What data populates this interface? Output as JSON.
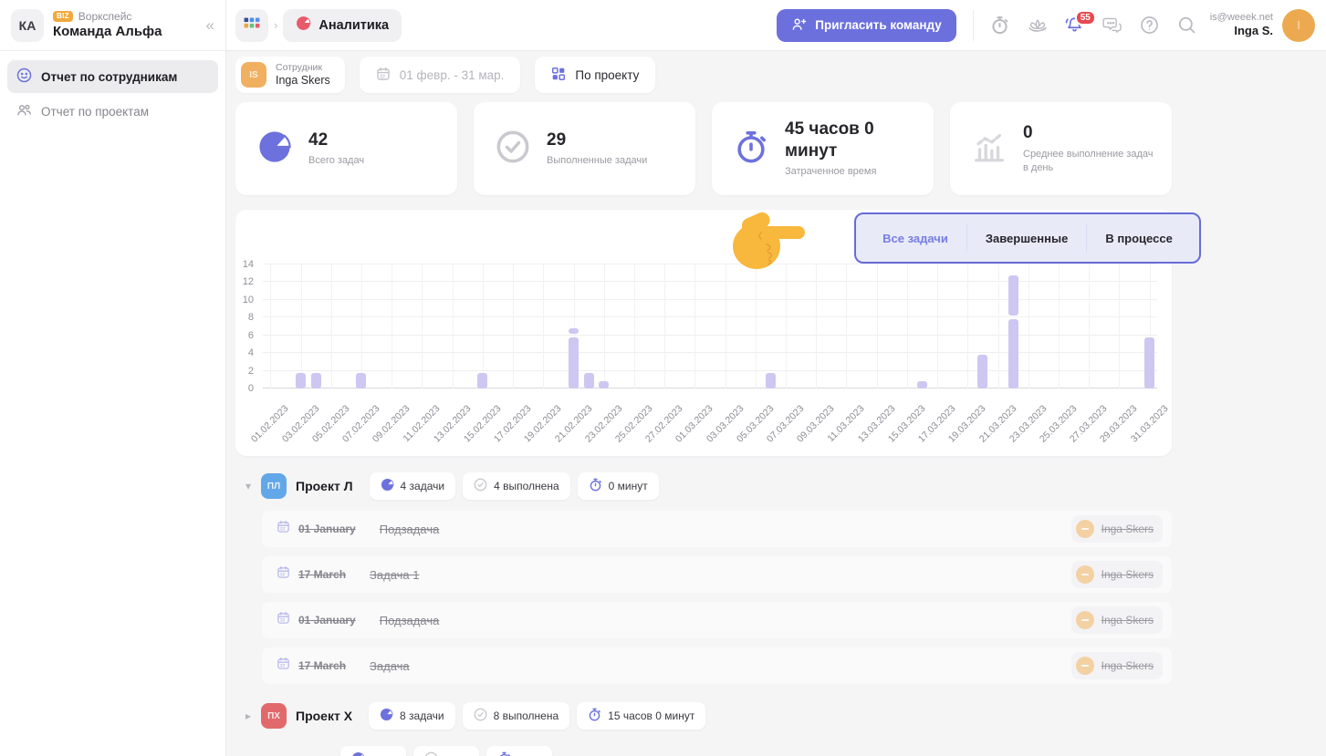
{
  "sidebar": {
    "workspace_initials": "КА",
    "plan_badge": "BIZ",
    "workspace_label": "Воркспейс",
    "workspace_name": "Команда Альфа",
    "items": [
      {
        "label": "Отчет по сотрудникам",
        "icon": "smiley-icon",
        "active": true
      },
      {
        "label": "Отчет по проектам",
        "icon": "people-icon",
        "active": false
      }
    ]
  },
  "header": {
    "current_tab": "Аналитика",
    "invite_button": "Пригласить команду",
    "notification_count": "55",
    "user_email": "is@weeek.net",
    "user_name": "Inga S.",
    "avatar_initial": "I"
  },
  "filters": {
    "employee": {
      "label": "Сотрудник",
      "value": "Inga Skers",
      "avatar_initials": "IS",
      "avatar_color": "#f0b060"
    },
    "date_range": "01 февр. - 31 мар.",
    "grouping": "По проекту"
  },
  "stats": [
    {
      "icon": "pie-chart-icon",
      "accent": "#6d71dd",
      "value": "42",
      "label": "Всего задач"
    },
    {
      "icon": "check-circle-icon",
      "accent": "#c9c9cf",
      "value": "29",
      "label": "Выполненные задачи"
    },
    {
      "icon": "stopwatch-icon",
      "accent": "#6d71dd",
      "value": "45 часов 0 минут",
      "label": "Затраченное время"
    },
    {
      "icon": "bar-chart-icon",
      "accent": "#d7d7dc",
      "value": "0",
      "label": "Среднее выполнение задач в день"
    }
  ],
  "chart_tabs": {
    "tabs": [
      "Все задачи",
      "Завершенные",
      "В процессе"
    ],
    "active": "Все задачи",
    "box_border": "#666cd6",
    "box_bg": "#e9eaf8"
  },
  "chart_data": {
    "type": "bar",
    "title": "",
    "xlabel": "",
    "ylabel": "",
    "ylim": [
      0,
      14
    ],
    "yticks": [
      0,
      2,
      4,
      6,
      8,
      10,
      12,
      14
    ],
    "x_range": [
      "01.02.2023",
      "31.03.2023"
    ],
    "bar_color": "#cdc7f1",
    "grid": true,
    "tick_labels": [
      "01.02.2023",
      "03.02.2023",
      "05.02.2023",
      "07.02.2023",
      "09.02.2023",
      "11.02.2023",
      "13.02.2023",
      "15.02.2023",
      "17.02.2023",
      "19.02.2023",
      "21.02.2023",
      "23.02.2023",
      "25.02.2023",
      "27.02.2023",
      "01.03.2023",
      "03.03.2023",
      "05.03.2023",
      "07.03.2023",
      "09.03.2023",
      "11.03.2023",
      "13.03.2023",
      "15.03.2023",
      "17.03.2023",
      "19.03.2023",
      "21.03.2023",
      "23.03.2023",
      "25.03.2023",
      "27.03.2023",
      "29.03.2023",
      "31.03.2023"
    ],
    "bars": [
      {
        "date": "03.02.2023",
        "segments": [
          2
        ]
      },
      {
        "date": "04.02.2023",
        "segments": [
          2
        ]
      },
      {
        "date": "07.02.2023",
        "segments": [
          2
        ]
      },
      {
        "date": "15.02.2023",
        "segments": [
          2
        ]
      },
      {
        "date": "21.02.2023",
        "segments": [
          6,
          1
        ]
      },
      {
        "date": "22.02.2023",
        "segments": [
          2
        ]
      },
      {
        "date": "23.02.2023",
        "segments": [
          1
        ]
      },
      {
        "date": "06.03.2023",
        "segments": [
          2
        ]
      },
      {
        "date": "16.03.2023",
        "segments": [
          1
        ]
      },
      {
        "date": "20.03.2023",
        "segments": [
          4
        ]
      },
      {
        "date": "22.03.2023",
        "segments": [
          8,
          5
        ]
      },
      {
        "date": "31.03.2023",
        "segments": [
          6
        ]
      }
    ]
  },
  "projects": [
    {
      "initials": "ПЛ",
      "color": "#62a8e9",
      "name": "Проект Л",
      "expanded": true,
      "chips": [
        {
          "icon": "pie-chart-icon",
          "label": "4 задачи"
        },
        {
          "icon": "check-circle-icon",
          "label": "4 выполнена"
        },
        {
          "icon": "stopwatch-icon",
          "label": "0 минут"
        }
      ],
      "tasks": [
        {
          "date": "01 January",
          "title": "Подзадача",
          "assignee": "Inga Skers",
          "completed": true
        },
        {
          "date": "17 March",
          "title": "Задача 1",
          "assignee": "Inga Skers",
          "completed": true
        },
        {
          "date": "01 January",
          "title": "Подзадача",
          "assignee": "Inga Skers",
          "completed": true
        },
        {
          "date": "17 March",
          "title": "Задача",
          "assignee": "Inga Skers",
          "completed": true
        }
      ]
    },
    {
      "initials": "ПХ",
      "color": "#e2696b",
      "name": "Проект Х",
      "expanded": false,
      "chips": [
        {
          "icon": "pie-chart-icon",
          "label": "8 задачи"
        },
        {
          "icon": "check-circle-icon",
          "label": "8 выполнена"
        },
        {
          "icon": "stopwatch-icon",
          "label": "15 часов 0 минут"
        }
      ],
      "tasks": []
    },
    {
      "partial": true,
      "name": "",
      "chips": [
        {
          "icon": "pie-chart-icon",
          "label": ""
        },
        {
          "icon": "check-circle-icon",
          "label": ""
        },
        {
          "icon": "stopwatch-icon",
          "label": ""
        }
      ],
      "tasks": []
    }
  ]
}
